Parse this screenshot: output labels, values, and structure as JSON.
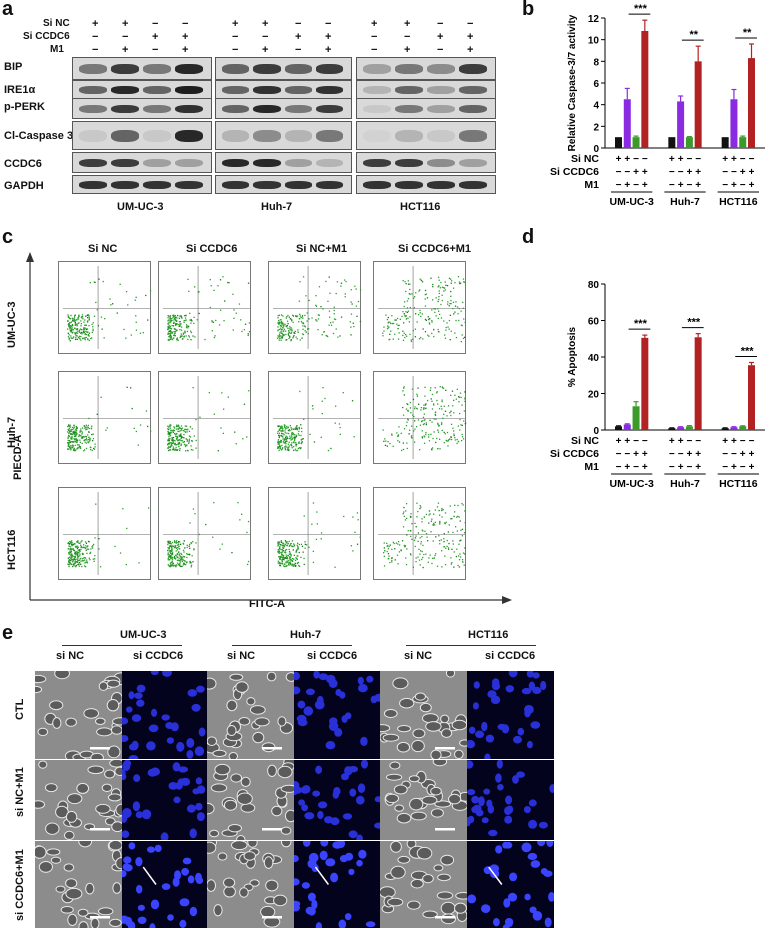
{
  "panel_labels": {
    "a": "a",
    "b": "b",
    "c": "c",
    "d": "d",
    "e": "e"
  },
  "panel_a": {
    "cond_rows": [
      "Si NC",
      "Si CCDC6",
      "M1"
    ],
    "groups": [
      {
        "name": "UM-UC-3",
        "signs": [
          [
            "+",
            "+",
            "−",
            "−"
          ],
          [
            "−",
            "−",
            "+",
            "+"
          ],
          [
            "−",
            "+",
            "−",
            "+"
          ]
        ]
      },
      {
        "name": "Huh-7",
        "signs": [
          [
            "+",
            "+",
            "−",
            "−"
          ],
          [
            "−",
            "−",
            "+",
            "+"
          ],
          [
            "−",
            "+",
            "−",
            "+"
          ]
        ]
      },
      {
        "name": "HCT116",
        "signs": [
          [
            "+",
            "+",
            "−",
            "−"
          ],
          [
            "−",
            "−",
            "+",
            "+"
          ],
          [
            "−",
            "+",
            "−",
            "+"
          ]
        ]
      }
    ],
    "proteins": [
      "BIP",
      "IRE1α",
      "p-PERK",
      "Cl-Caspase 3",
      "CCDC6",
      "GAPDH"
    ]
  },
  "chart_data": [
    {
      "type": "bar",
      "ylabel": "Relative Caspase-3/7 activity",
      "ylim": [
        0,
        12
      ],
      "yticks": [
        "0",
        "2",
        "4",
        "6",
        "8",
        "10",
        "12"
      ],
      "groups": [
        "UM-UC-3",
        "Huh-7",
        "HCT116"
      ],
      "values": [
        [
          1,
          4.5,
          1,
          10.8
        ],
        [
          1,
          4.3,
          1,
          8
        ],
        [
          1,
          4.5,
          1,
          8.3
        ]
      ],
      "errors": [
        [
          0,
          1,
          0.1,
          1
        ],
        [
          0,
          0.5,
          0.05,
          1.4
        ],
        [
          0,
          0.9,
          0.1,
          1.3
        ]
      ],
      "colors": [
        "#111111",
        "#8a2be2",
        "#3a9a2a",
        "#b22222"
      ],
      "significance": [
        "***",
        "**",
        "**"
      ],
      "cond_rows": [
        "Si NC",
        "Si CCDC6",
        "M1"
      ],
      "signs": [
        [
          "+",
          "+",
          "−",
          "−"
        ],
        [
          "−",
          "−",
          "+",
          "+"
        ],
        [
          "−",
          "+",
          "−",
          "+"
        ]
      ]
    },
    {
      "type": "bar",
      "ylabel": "% Apoptosis",
      "ylim": [
        0,
        80
      ],
      "yticks": [
        "0",
        "20",
        "40",
        "60",
        "80"
      ],
      "groups": [
        "UM-UC-3",
        "Huh-7",
        "HCT116"
      ],
      "values": [
        [
          2,
          3,
          13,
          50.5
        ],
        [
          1,
          1.5,
          2,
          50.8
        ],
        [
          1,
          1.5,
          2,
          35.5
        ]
      ],
      "errors": [
        [
          0.3,
          0.4,
          2.5,
          1.5
        ],
        [
          0.2,
          0.3,
          0.4,
          2
        ],
        [
          0.2,
          0.3,
          0.3,
          1.5
        ]
      ],
      "colors": [
        "#111111",
        "#8a2be2",
        "#3a9a2a",
        "#b22222"
      ],
      "significance": [
        "***",
        "***",
        "***"
      ],
      "cond_rows": [
        "Si NC",
        "Si CCDC6",
        "M1"
      ],
      "signs": [
        [
          "+",
          "+",
          "−",
          "−"
        ],
        [
          "−",
          "−",
          "+",
          "+"
        ],
        [
          "−",
          "+",
          "−",
          "+"
        ]
      ]
    }
  ],
  "panel_c": {
    "columns": [
      "Si NC",
      "Si CCDC6",
      "Si NC+M1",
      "Si CCDC6+M1"
    ],
    "rows": [
      "UM-UC-3",
      "Huh-7",
      "HCT116"
    ],
    "y_axis": "PIECD-A",
    "x_axis": "FITC-A"
  },
  "panel_e": {
    "cell_lines": [
      "UM-UC-3",
      "Huh-7",
      "HCT116"
    ],
    "sub_cols": [
      "si NC",
      "si CCDC6"
    ],
    "rows": [
      "CTL",
      "si NC+M1",
      "si CCDC6+M1"
    ]
  }
}
